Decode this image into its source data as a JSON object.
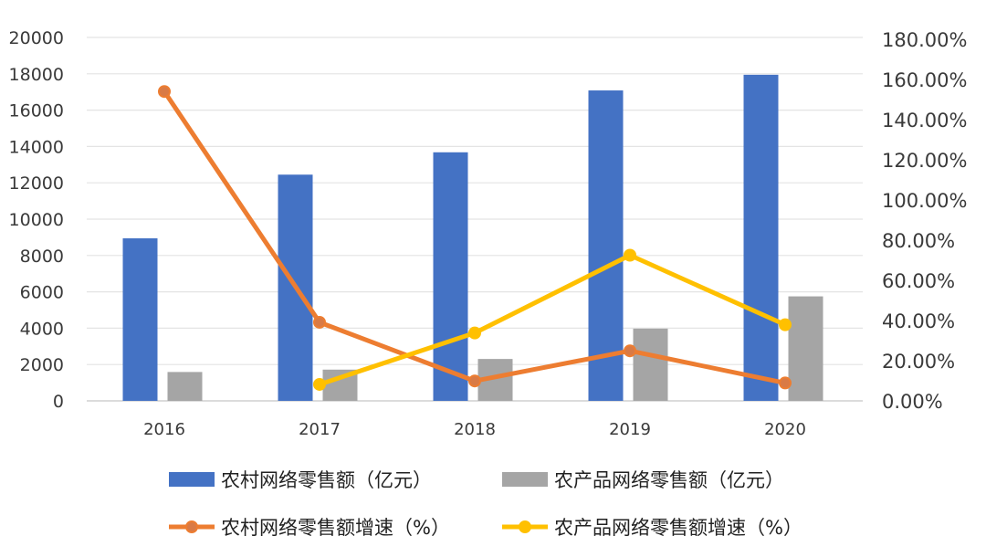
{
  "chart_data": {
    "type": "bar",
    "categories": [
      "2016",
      "2017",
      "2018",
      "2019",
      "2020"
    ],
    "y_left": {
      "range": [
        0,
        20000
      ],
      "ticks": [
        "0",
        "2000",
        "4000",
        "6000",
        "8000",
        "10000",
        "12000",
        "14000",
        "16000",
        "18000",
        "20000"
      ]
    },
    "y_right": {
      "range": [
        0,
        180
      ],
      "ticks": [
        "0.00%",
        "20.00%",
        "40.00%",
        "60.00%",
        "80.00%",
        "100.00%",
        "120.00%",
        "140.00%",
        "160.00%",
        "180.00%"
      ]
    },
    "grid": true,
    "legend_position": "bottom",
    "bar_series": [
      {
        "name": "农村网络零售额（亿元）",
        "color": "#4472C4",
        "values": [
          8945,
          12449,
          13679,
          17083,
          17946
        ]
      },
      {
        "name": "农产品网络零售额（亿元）",
        "color": "#A5A5A5",
        "values": [
          1589,
          1719,
          2305,
          3975,
          5750
        ]
      }
    ],
    "line_series": [
      {
        "name": "农村网络零售额增速（%）",
        "color": "#ED7D31",
        "values": [
          154,
          39.1,
          9.9,
          24.9,
          8.9
        ]
      },
      {
        "name": "农产品网络零售额增速（%）",
        "color": "#FFC000",
        "values": [
          null,
          8.2,
          33.8,
          72.5,
          37.9
        ]
      }
    ]
  }
}
